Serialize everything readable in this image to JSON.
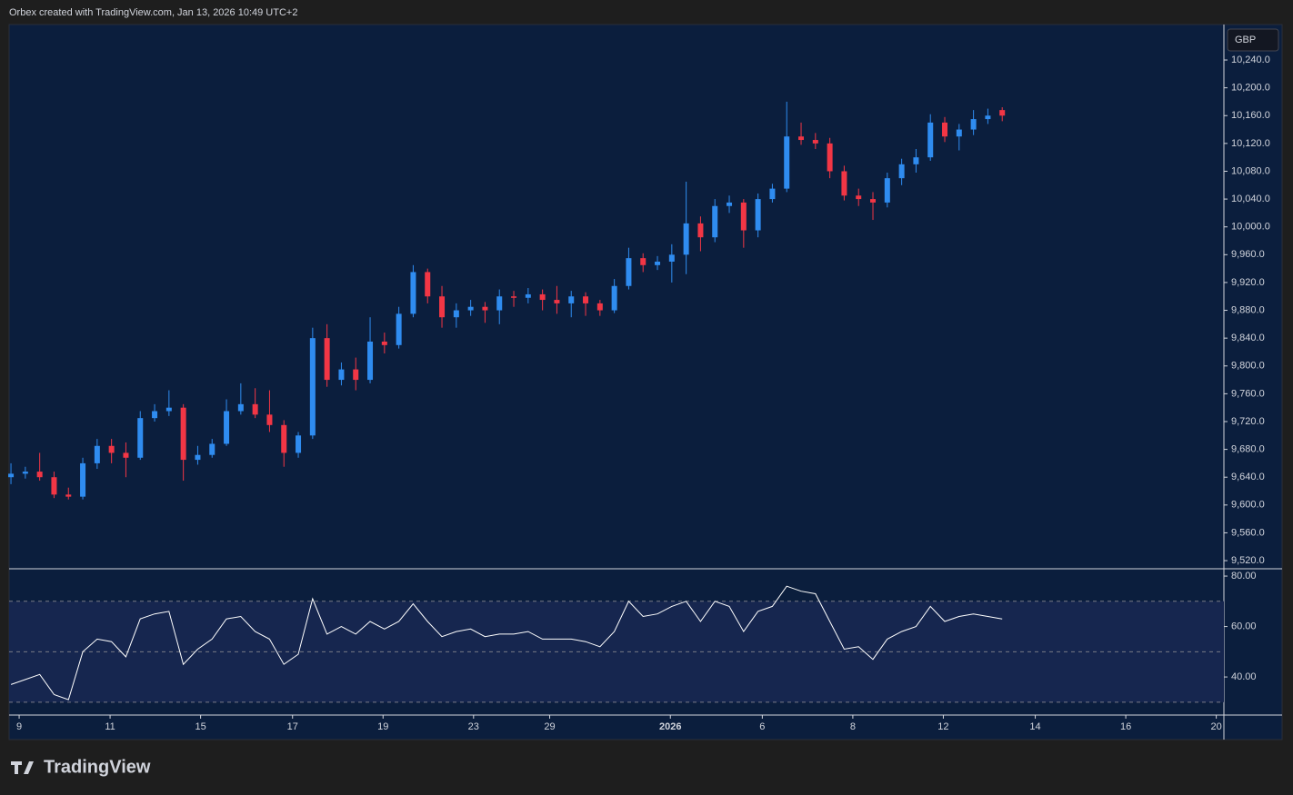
{
  "header": "Orbex created with TradingView.com, Jan 13, 2026 10:49 UTC+2",
  "logo": "TradingView",
  "chart_data": [
    {
      "type": "candlestick",
      "currency": "GBP",
      "up_color": "#2f8cf0",
      "down_color": "#f23645",
      "xlim": [
        -0.13,
        84.43
      ],
      "xticks": [
        {
          "value": 0.57,
          "label": "9"
        },
        {
          "value": 6.9,
          "label": "11"
        },
        {
          "value": 13.2,
          "label": "15"
        },
        {
          "value": 19.6,
          "label": "17"
        },
        {
          "value": 25.9,
          "label": "19"
        },
        {
          "value": 32.2,
          "label": "23"
        },
        {
          "value": 37.5,
          "label": "29"
        },
        {
          "value": 45.9,
          "label": "2026"
        },
        {
          "value": 52.3,
          "label": "6"
        },
        {
          "value": 58.6,
          "label": "8"
        },
        {
          "value": 64.9,
          "label": "12"
        },
        {
          "value": 71.3,
          "label": "14"
        },
        {
          "value": 77.6,
          "label": "16"
        },
        {
          "value": 83.9,
          "label": "20"
        }
      ],
      "ylim": [
        9508.3,
        10291
      ],
      "yticks": [
        {
          "value": 9520,
          "label": "9,520.0"
        },
        {
          "value": 9560,
          "label": "9,560.0"
        },
        {
          "value": 9600,
          "label": "9,600.0"
        },
        {
          "value": 9640,
          "label": "9,640.0"
        },
        {
          "value": 9680,
          "label": "9,680.0"
        },
        {
          "value": 9720,
          "label": "9,720.0"
        },
        {
          "value": 9760,
          "label": "9,760.0"
        },
        {
          "value": 9800,
          "label": "9,800.0"
        },
        {
          "value": 9840,
          "label": "9,840.0"
        },
        {
          "value": 9880,
          "label": "9,880.0"
        },
        {
          "value": 9920,
          "label": "9,920.0"
        },
        {
          "value": 9960,
          "label": "9,960.0"
        },
        {
          "value": 10000,
          "label": "10,000.0"
        },
        {
          "value": 10040,
          "label": "10,040.0"
        },
        {
          "value": 10080,
          "label": "10,080.0"
        },
        {
          "value": 10120,
          "label": "10,120.0"
        },
        {
          "value": 10160,
          "label": "10,160.0"
        },
        {
          "value": 10200,
          "label": "10,200.0"
        },
        {
          "value": 10240,
          "label": "10,240.0"
        }
      ],
      "ohlc": [
        [
          9640,
          9660,
          9630,
          9645
        ],
        [
          9645,
          9655,
          9638,
          9648
        ],
        [
          9648,
          9675,
          9635,
          9640
        ],
        [
          9640,
          9648,
          9610,
          9615
        ],
        [
          9615,
          9625,
          9608,
          9612
        ],
        [
          9612,
          9668,
          9608,
          9660
        ],
        [
          9660,
          9695,
          9652,
          9685
        ],
        [
          9685,
          9695,
          9660,
          9675
        ],
        [
          9675,
          9690,
          9640,
          9668
        ],
        [
          9668,
          9735,
          9665,
          9725
        ],
        [
          9725,
          9745,
          9720,
          9735
        ],
        [
          9735,
          9765,
          9728,
          9740
        ],
        [
          9740,
          9745,
          9635,
          9665
        ],
        [
          9665,
          9685,
          9658,
          9672
        ],
        [
          9672,
          9695,
          9668,
          9688
        ],
        [
          9688,
          9752,
          9685,
          9735
        ],
        [
          9735,
          9775,
          9730,
          9745
        ],
        [
          9745,
          9768,
          9725,
          9730
        ],
        [
          9730,
          9765,
          9705,
          9715
        ],
        [
          9715,
          9722,
          9655,
          9675
        ],
        [
          9675,
          9705,
          9668,
          9700
        ],
        [
          9700,
          9855,
          9695,
          9840
        ],
        [
          9840,
          9860,
          9770,
          9780
        ],
        [
          9780,
          9805,
          9772,
          9795
        ],
        [
          9795,
          9812,
          9765,
          9780
        ],
        [
          9780,
          9870,
          9775,
          9835
        ],
        [
          9835,
          9848,
          9818,
          9830
        ],
        [
          9830,
          9885,
          9825,
          9875
        ],
        [
          9875,
          9945,
          9870,
          9935
        ],
        [
          9935,
          9940,
          9890,
          9900
        ],
        [
          9900,
          9915,
          9855,
          9870
        ],
        [
          9870,
          9890,
          9855,
          9880
        ],
        [
          9880,
          9895,
          9872,
          9885
        ],
        [
          9885,
          9892,
          9862,
          9880
        ],
        [
          9880,
          9910,
          9860,
          9900
        ],
        [
          9900,
          9908,
          9885,
          9898
        ],
        [
          9898,
          9912,
          9890,
          9903
        ],
        [
          9903,
          9910,
          9880,
          9895
        ],
        [
          9895,
          9915,
          9875,
          9890
        ],
        [
          9890,
          9908,
          9870,
          9900
        ],
        [
          9900,
          9906,
          9872,
          9890
        ],
        [
          9890,
          9895,
          9872,
          9880
        ],
        [
          9880,
          9925,
          9876,
          9915
        ],
        [
          9915,
          9970,
          9910,
          9955
        ],
        [
          9955,
          9962,
          9935,
          9945
        ],
        [
          9945,
          9958,
          9938,
          9950
        ],
        [
          9950,
          9975,
          9920,
          9960
        ],
        [
          9960,
          10065,
          9932,
          10005
        ],
        [
          10005,
          10015,
          9965,
          9985
        ],
        [
          9985,
          10040,
          9978,
          10030
        ],
        [
          10030,
          10045,
          10020,
          10035
        ],
        [
          10035,
          10040,
          9970,
          9995
        ],
        [
          9995,
          10048,
          9985,
          10040
        ],
        [
          10040,
          10062,
          10035,
          10055
        ],
        [
          10055,
          10180,
          10050,
          10130
        ],
        [
          10130,
          10150,
          10118,
          10125
        ],
        [
          10125,
          10135,
          10112,
          10120
        ],
        [
          10120,
          10128,
          10070,
          10080
        ],
        [
          10080,
          10088,
          10038,
          10045
        ],
        [
          10045,
          10055,
          10030,
          10040
        ],
        [
          10040,
          10050,
          10010,
          10035
        ],
        [
          10035,
          10078,
          10028,
          10070
        ],
        [
          10070,
          10098,
          10060,
          10090
        ],
        [
          10090,
          10112,
          10078,
          10100
        ],
        [
          10100,
          10162,
          10095,
          10150
        ],
        [
          10150,
          10158,
          10122,
          10130
        ],
        [
          10130,
          10148,
          10110,
          10140
        ],
        [
          10140,
          10168,
          10132,
          10155
        ],
        [
          10155,
          10170,
          10148,
          10160
        ],
        [
          10168,
          10172,
          10152,
          10160
        ]
      ]
    },
    {
      "type": "line",
      "color": "#ffffff",
      "band_color": "#16264f",
      "ylim": [
        24.9,
        82.9
      ],
      "yticks": [
        {
          "value": 40,
          "label": "40.00"
        },
        {
          "value": 60,
          "label": "60.00"
        },
        {
          "value": 80,
          "label": "80.00"
        }
      ],
      "levels": [
        70,
        50,
        30
      ],
      "values": [
        37,
        39,
        41,
        33,
        31,
        50,
        55,
        54,
        48,
        63,
        65,
        66,
        45,
        51,
        55,
        63,
        64,
        58,
        55,
        45,
        49,
        71,
        57,
        60,
        57,
        62,
        59,
        62,
        69,
        62,
        56,
        58,
        59,
        56,
        57,
        57,
        58,
        55,
        55,
        55,
        54,
        52,
        58,
        70,
        64,
        65,
        68,
        70,
        62,
        70,
        68,
        58,
        66,
        68,
        76,
        74,
        73,
        62,
        51,
        52,
        47,
        55,
        58,
        60,
        68,
        62,
        64,
        65,
        64,
        63
      ]
    }
  ]
}
